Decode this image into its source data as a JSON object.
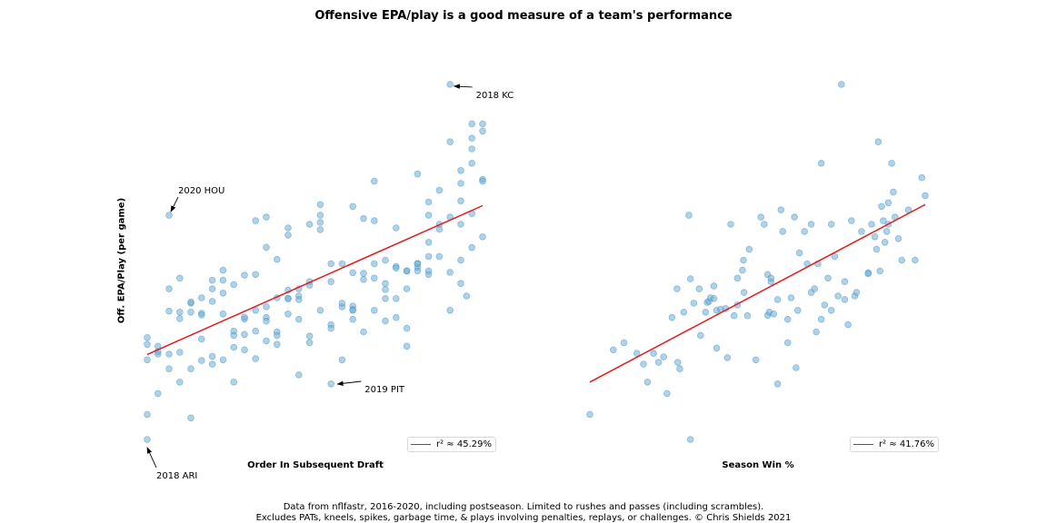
{
  "title": "Offensive EPA/play is a good measure of a team's performance",
  "ylabel": "Off. EPA/Play (per game)",
  "footer": {
    "line1": "Data from nflfastr, 2016-2020, including postseason. Limited to rushes and passes (including scrambles).",
    "line2": "Excludes PATs, kneels, spikes, garbage time, & plays involving penalties, replays, or challenges. © Chris Shields 2021"
  },
  "colors": {
    "points": "#6baed6",
    "fit_line": "#e41a1c"
  },
  "chart_data": [
    {
      "type": "scatter",
      "xlabel": "Order In Subsequent Draft",
      "ylabel": "Off. EPA/Play (per game)",
      "legend": {
        "label": "r² ≈ 45.29%",
        "placement": "bottom-right"
      },
      "grid": false,
      "axes_visible": false,
      "xlim": [
        0,
        1
      ],
      "ylim": [
        0,
        1
      ],
      "fit_line": {
        "x": [
          0.0,
          1.0
        ],
        "y": [
          0.237,
          0.652
        ]
      },
      "annotations": [
        {
          "text": "2018 KC",
          "x": 0.904,
          "y": 0.99
        },
        {
          "text": "2020 HOU",
          "x": 0.065,
          "y": 0.625
        },
        {
          "text": "2019 PIT",
          "x": 0.551,
          "y": 0.162
        },
        {
          "text": "2018 ARI",
          "x": 0.0,
          "y": 0.0
        }
      ],
      "points": [
        [
          0.0,
          0.0
        ],
        [
          0.0,
          0.07
        ],
        [
          0.0,
          0.222
        ],
        [
          0.0,
          0.265
        ],
        [
          0.0,
          0.284
        ],
        [
          0.032,
          0.26
        ],
        [
          0.032,
          0.238
        ],
        [
          0.032,
          0.245
        ],
        [
          0.032,
          0.128
        ],
        [
          0.065,
          0.625
        ],
        [
          0.065,
          0.42
        ],
        [
          0.065,
          0.358
        ],
        [
          0.065,
          0.238
        ],
        [
          0.065,
          0.197
        ],
        [
          0.097,
          0.45
        ],
        [
          0.097,
          0.355
        ],
        [
          0.097,
          0.337
        ],
        [
          0.097,
          0.243
        ],
        [
          0.097,
          0.16
        ],
        [
          0.13,
          0.38
        ],
        [
          0.13,
          0.355
        ],
        [
          0.13,
          0.383
        ],
        [
          0.13,
          0.197
        ],
        [
          0.13,
          0.06
        ],
        [
          0.162,
          0.395
        ],
        [
          0.162,
          0.352
        ],
        [
          0.162,
          0.347
        ],
        [
          0.162,
          0.28
        ],
        [
          0.162,
          0.22
        ],
        [
          0.194,
          0.42
        ],
        [
          0.194,
          0.385
        ],
        [
          0.194,
          0.444
        ],
        [
          0.194,
          0.232
        ],
        [
          0.194,
          0.21
        ],
        [
          0.226,
          0.472
        ],
        [
          0.226,
          0.444
        ],
        [
          0.226,
          0.408
        ],
        [
          0.226,
          0.35
        ],
        [
          0.226,
          0.222
        ],
        [
          0.258,
          0.432
        ],
        [
          0.258,
          0.302
        ],
        [
          0.258,
          0.29
        ],
        [
          0.258,
          0.257
        ],
        [
          0.258,
          0.16
        ],
        [
          0.29,
          0.458
        ],
        [
          0.29,
          0.336
        ],
        [
          0.29,
          0.341
        ],
        [
          0.29,
          0.293
        ],
        [
          0.29,
          0.25
        ],
        [
          0.323,
          0.61
        ],
        [
          0.323,
          0.46
        ],
        [
          0.323,
          0.36
        ],
        [
          0.323,
          0.302
        ],
        [
          0.323,
          0.225
        ],
        [
          0.355,
          0.62
        ],
        [
          0.355,
          0.536
        ],
        [
          0.355,
          0.34
        ],
        [
          0.355,
          0.37
        ],
        [
          0.355,
          0.33
        ],
        [
          0.355,
          0.275
        ],
        [
          0.387,
          0.502
        ],
        [
          0.387,
          0.395
        ],
        [
          0.387,
          0.3
        ],
        [
          0.387,
          0.265
        ],
        [
          0.387,
          0.29
        ],
        [
          0.42,
          0.57
        ],
        [
          0.42,
          0.59
        ],
        [
          0.42,
          0.416
        ],
        [
          0.42,
          0.35
        ],
        [
          0.42,
          0.394
        ],
        [
          0.42,
          0.392
        ],
        [
          0.452,
          0.4
        ],
        [
          0.452,
          0.42
        ],
        [
          0.452,
          0.39
        ],
        [
          0.452,
          0.335
        ],
        [
          0.452,
          0.18
        ],
        [
          0.484,
          0.44
        ],
        [
          0.484,
          0.43
        ],
        [
          0.484,
          0.6
        ],
        [
          0.484,
          0.27
        ],
        [
          0.484,
          0.288
        ],
        [
          0.516,
          0.655
        ],
        [
          0.516,
          0.625
        ],
        [
          0.516,
          0.605
        ],
        [
          0.516,
          0.585
        ],
        [
          0.516,
          0.36
        ],
        [
          0.548,
          0.155
        ],
        [
          0.548,
          0.44
        ],
        [
          0.548,
          0.49
        ],
        [
          0.548,
          0.32
        ],
        [
          0.548,
          0.31
        ],
        [
          0.581,
          0.49
        ],
        [
          0.581,
          0.37
        ],
        [
          0.581,
          0.38
        ],
        [
          0.581,
          0.222
        ],
        [
          0.613,
          0.465
        ],
        [
          0.613,
          0.65
        ],
        [
          0.613,
          0.372
        ],
        [
          0.613,
          0.362
        ],
        [
          0.613,
          0.335
        ],
        [
          0.613,
          0.36
        ],
        [
          0.645,
          0.446
        ],
        [
          0.645,
          0.616
        ],
        [
          0.645,
          0.463
        ],
        [
          0.645,
          0.3
        ],
        [
          0.677,
          0.45
        ],
        [
          0.677,
          0.49
        ],
        [
          0.677,
          0.72
        ],
        [
          0.677,
          0.61
        ],
        [
          0.677,
          0.36
        ],
        [
          0.71,
          0.5
        ],
        [
          0.71,
          0.435
        ],
        [
          0.71,
          0.393
        ],
        [
          0.71,
          0.418
        ],
        [
          0.71,
          0.33
        ],
        [
          0.742,
          0.482
        ],
        [
          0.742,
          0.478
        ],
        [
          0.742,
          0.34
        ],
        [
          0.742,
          0.393
        ],
        [
          0.742,
          0.59
        ],
        [
          0.774,
          0.47
        ],
        [
          0.774,
          0.47
        ],
        [
          0.774,
          0.42
        ],
        [
          0.774,
          0.26
        ],
        [
          0.774,
          0.31
        ],
        [
          0.806,
          0.48
        ],
        [
          0.806,
          0.47
        ],
        [
          0.806,
          0.491
        ],
        [
          0.806,
          0.49
        ],
        [
          0.806,
          0.74
        ],
        [
          0.839,
          0.47
        ],
        [
          0.839,
          0.46
        ],
        [
          0.839,
          0.625
        ],
        [
          0.839,
          0.51
        ],
        [
          0.839,
          0.55
        ],
        [
          0.839,
          0.662
        ],
        [
          0.871,
          0.6
        ],
        [
          0.871,
          0.586
        ],
        [
          0.871,
          0.695
        ],
        [
          0.871,
          0.51
        ],
        [
          0.903,
          0.62
        ],
        [
          0.903,
          0.466
        ],
        [
          0.903,
          0.36
        ],
        [
          0.903,
          0.99
        ],
        [
          0.903,
          0.83
        ],
        [
          0.935,
          0.75
        ],
        [
          0.935,
          0.6
        ],
        [
          0.935,
          0.5
        ],
        [
          0.935,
          0.435
        ],
        [
          0.935,
          0.665
        ],
        [
          0.935,
          0.714
        ],
        [
          0.968,
          0.535
        ],
        [
          0.968,
          0.63
        ],
        [
          0.968,
          0.81
        ],
        [
          0.968,
          0.77
        ],
        [
          0.968,
          0.84
        ],
        [
          0.968,
          0.88
        ],
        [
          1.0,
          0.88
        ],
        [
          1.0,
          0.86
        ],
        [
          1.0,
          0.725
        ],
        [
          1.0,
          0.72
        ],
        [
          1.0,
          0.565
        ],
        [
          0.952,
          0.4
        ]
      ]
    },
    {
      "type": "scatter",
      "xlabel": "Season Win %",
      "ylabel": "Off. EPA/Play (per game)",
      "legend": {
        "label": "r² ≈ 41.76%",
        "placement": "bottom-right"
      },
      "grid": false,
      "axes_visible": false,
      "xlim": [
        0,
        1
      ],
      "ylim": [
        0,
        1
      ],
      "fit_line": {
        "x": [
          0.0,
          1.0
        ],
        "y": [
          0.16,
          0.655
        ]
      },
      "points": [
        [
          0.0,
          0.07
        ],
        [
          0.07,
          0.25
        ],
        [
          0.102,
          0.27
        ],
        [
          0.14,
          0.24
        ],
        [
          0.16,
          0.21
        ],
        [
          0.172,
          0.16
        ],
        [
          0.19,
          0.24
        ],
        [
          0.205,
          0.215
        ],
        [
          0.22,
          0.23
        ],
        [
          0.23,
          0.128
        ],
        [
          0.245,
          0.34
        ],
        [
          0.26,
          0.42
        ],
        [
          0.262,
          0.215
        ],
        [
          0.268,
          0.197
        ],
        [
          0.28,
          0.355
        ],
        [
          0.295,
          0.625
        ],
        [
          0.3,
          0.448
        ],
        [
          0.3,
          0.0
        ],
        [
          0.31,
          0.38
        ],
        [
          0.326,
          0.42
        ],
        [
          0.33,
          0.29
        ],
        [
          0.345,
          0.355
        ],
        [
          0.35,
          0.382
        ],
        [
          0.355,
          0.385
        ],
        [
          0.36,
          0.395
        ],
        [
          0.37,
          0.393
        ],
        [
          0.37,
          0.428
        ],
        [
          0.378,
          0.36
        ],
        [
          0.378,
          0.255
        ],
        [
          0.39,
          0.363
        ],
        [
          0.405,
          0.365
        ],
        [
          0.41,
          0.228
        ],
        [
          0.42,
          0.6
        ],
        [
          0.43,
          0.345
        ],
        [
          0.44,
          0.375
        ],
        [
          0.44,
          0.45
        ],
        [
          0.455,
          0.472
        ],
        [
          0.458,
          0.5
        ],
        [
          0.46,
          0.41
        ],
        [
          0.47,
          0.345
        ],
        [
          0.475,
          0.53
        ],
        [
          0.495,
          0.222
        ],
        [
          0.51,
          0.62
        ],
        [
          0.52,
          0.6
        ],
        [
          0.53,
          0.46
        ],
        [
          0.53,
          0.346
        ],
        [
          0.535,
          0.355
        ],
        [
          0.54,
          0.44
        ],
        [
          0.54,
          0.45
        ],
        [
          0.548,
          0.35
        ],
        [
          0.56,
          0.155
        ],
        [
          0.56,
          0.39
        ],
        [
          0.57,
          0.64
        ],
        [
          0.575,
          0.58
        ],
        [
          0.59,
          0.27
        ],
        [
          0.59,
          0.335
        ],
        [
          0.6,
          0.395
        ],
        [
          0.61,
          0.62
        ],
        [
          0.615,
          0.2
        ],
        [
          0.62,
          0.36
        ],
        [
          0.625,
          0.52
        ],
        [
          0.64,
          0.58
        ],
        [
          0.648,
          0.49
        ],
        [
          0.66,
          0.6
        ],
        [
          0.66,
          0.41
        ],
        [
          0.67,
          0.42
        ],
        [
          0.675,
          0.3
        ],
        [
          0.68,
          0.49
        ],
        [
          0.69,
          0.335
        ],
        [
          0.69,
          0.77
        ],
        [
          0.7,
          0.375
        ],
        [
          0.71,
          0.45
        ],
        [
          0.72,
          0.6
        ],
        [
          0.72,
          0.36
        ],
        [
          0.73,
          0.51
        ],
        [
          0.74,
          0.4
        ],
        [
          0.75,
          0.99
        ],
        [
          0.76,
          0.44
        ],
        [
          0.76,
          0.39
        ],
        [
          0.77,
          0.32
        ],
        [
          0.78,
          0.61
        ],
        [
          0.79,
          0.4
        ],
        [
          0.795,
          0.41
        ],
        [
          0.81,
          0.58
        ],
        [
          0.83,
          0.465
        ],
        [
          0.83,
          0.462
        ],
        [
          0.84,
          0.6
        ],
        [
          0.85,
          0.565
        ],
        [
          0.855,
          0.53
        ],
        [
          0.865,
          0.47
        ],
        [
          0.87,
          0.65
        ],
        [
          0.875,
          0.61
        ],
        [
          0.88,
          0.55
        ],
        [
          0.885,
          0.58
        ],
        [
          0.89,
          0.6
        ],
        [
          0.89,
          0.66
        ],
        [
          0.9,
          0.77
        ],
        [
          0.905,
          0.69
        ],
        [
          0.91,
          0.62
        ],
        [
          0.92,
          0.56
        ],
        [
          0.93,
          0.5
        ],
        [
          0.95,
          0.64
        ],
        [
          0.97,
          0.5
        ],
        [
          0.99,
          0.73
        ],
        [
          1.0,
          0.68
        ],
        [
          0.86,
          0.83
        ]
      ]
    }
  ]
}
